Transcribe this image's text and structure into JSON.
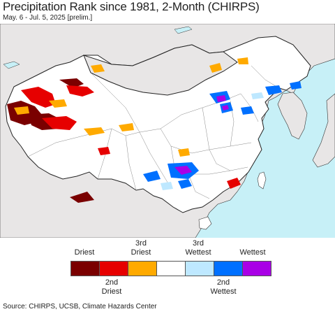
{
  "title": "Precipitation Rank since 1981, 2-Month (CHIRPS)",
  "subtitle": "May. 6 - Jul. 5, 2025 [prelim.]",
  "legend": {
    "top_labels": [
      {
        "text": "Driest"
      },
      {
        "text": "3rd Driest"
      },
      {
        "text": "3rd Wettest"
      },
      {
        "text": "Wettest"
      }
    ],
    "bottom_labels": [
      {
        "text": "2nd Driest"
      },
      {
        "text": "2nd Wettest"
      }
    ],
    "colors": [
      "#7a0000",
      "#e60000",
      "#ffaa00",
      "#ffffff",
      "#bee8ff",
      "#0070ff",
      "#a900e6"
    ]
  },
  "source": "Source: CHIRPS, UCSB, Climate Hazards Center",
  "map_colors": {
    "ocean": "#c7f0f7",
    "land_outside": "#e8e6e6",
    "land_inside": "#ffffff",
    "border": "#222222",
    "province_border": "#888888"
  }
}
